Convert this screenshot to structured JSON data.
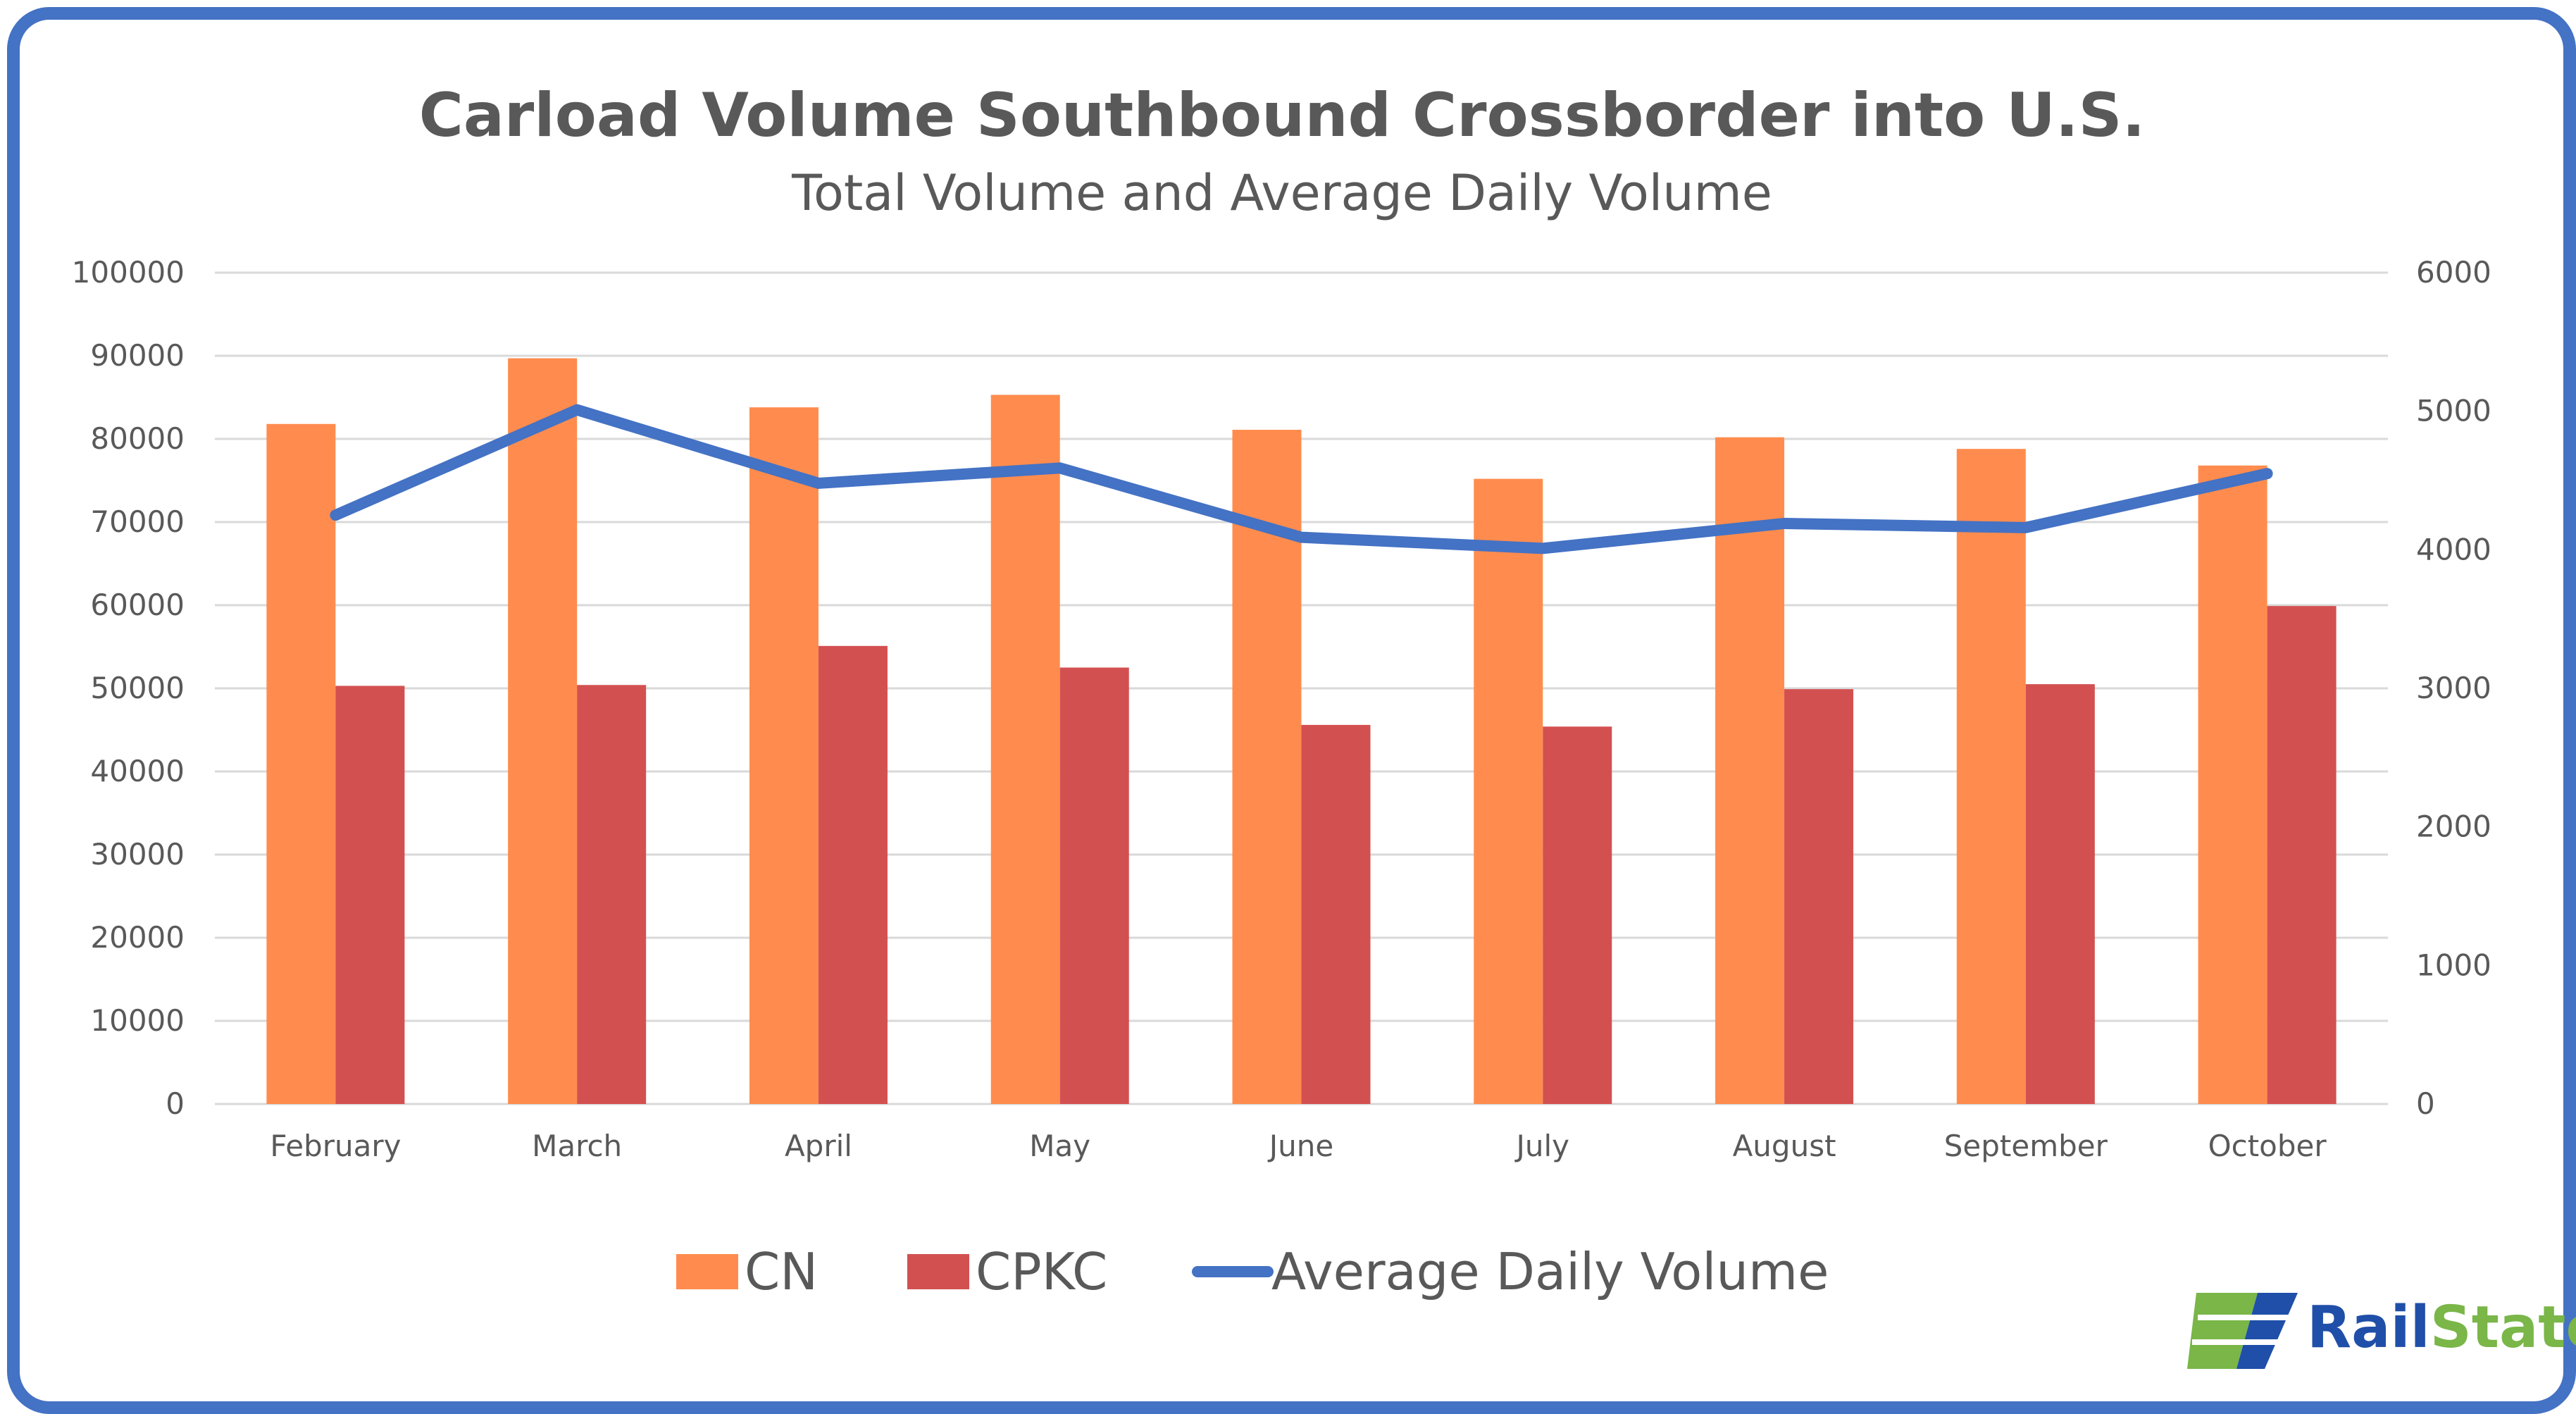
{
  "chart_data": {
    "type": "bar",
    "title": "Carload Volume Southbound Crossborder into U.S.",
    "subtitle": "Total Volume and Average Daily Volume",
    "categories": [
      "February",
      "March",
      "April",
      "May",
      "June",
      "July",
      "August",
      "September",
      "October"
    ],
    "series": [
      {
        "name": "CN",
        "type": "bar",
        "axis": "left",
        "color": "#ff8c4e",
        "values": [
          81800,
          89700,
          83800,
          85300,
          81100,
          75200,
          80200,
          78800,
          76800
        ]
      },
      {
        "name": "CPKC",
        "type": "bar",
        "axis": "left",
        "color": "#d35051",
        "values": [
          50300,
          50400,
          55100,
          52500,
          45600,
          45400,
          49900,
          50500,
          59900
        ]
      },
      {
        "name": "Average Daily Volume",
        "type": "line",
        "axis": "right",
        "color": "#4472c4",
        "values": [
          4250,
          5010,
          4480,
          4590,
          4090,
          4010,
          4190,
          4160,
          4550
        ]
      }
    ],
    "ylim_left": [
      0,
      100000
    ],
    "ylim_right": [
      0,
      6000
    ],
    "yticks_left": [
      "0",
      "10000",
      "20000",
      "30000",
      "40000",
      "50000",
      "60000",
      "70000",
      "80000",
      "90000",
      "100000"
    ],
    "yticks_right": [
      "0",
      "1000",
      "2000",
      "3000",
      "4000",
      "5000",
      "6000"
    ],
    "grid": true,
    "legend_position": "bottom"
  },
  "logo": {
    "word1": "Rail",
    "word2": "State",
    "color1": "#1f4fa8",
    "color2": "#7ab648"
  },
  "frame_color": "#4472c4"
}
